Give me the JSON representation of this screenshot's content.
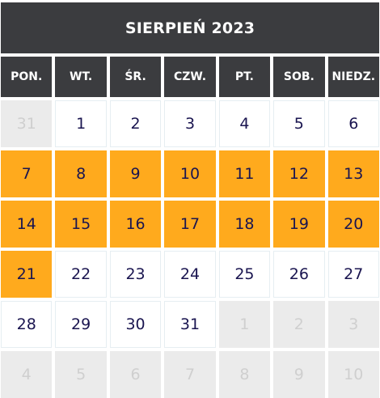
{
  "calendar": {
    "title": "SIERPIEŃ 2023",
    "weekdays": [
      "PON.",
      "WT.",
      "ŚR.",
      "CZW.",
      "PT.",
      "SOB.",
      "NIEDZ."
    ],
    "colors": {
      "header_bg": "#3b3c3f",
      "selected_bg": "#ffaa1d",
      "day_text": "#1a1550",
      "other_month_bg": "#ebebeb",
      "other_month_text": "#cfcfcf"
    },
    "days": [
      {
        "label": "31",
        "state": "other"
      },
      {
        "label": "1",
        "state": "current"
      },
      {
        "label": "2",
        "state": "current"
      },
      {
        "label": "3",
        "state": "current"
      },
      {
        "label": "4",
        "state": "current"
      },
      {
        "label": "5",
        "state": "current"
      },
      {
        "label": "6",
        "state": "current"
      },
      {
        "label": "7",
        "state": "selected"
      },
      {
        "label": "8",
        "state": "selected"
      },
      {
        "label": "9",
        "state": "selected"
      },
      {
        "label": "10",
        "state": "selected"
      },
      {
        "label": "11",
        "state": "selected"
      },
      {
        "label": "12",
        "state": "selected"
      },
      {
        "label": "13",
        "state": "selected"
      },
      {
        "label": "14",
        "state": "selected"
      },
      {
        "label": "15",
        "state": "selected"
      },
      {
        "label": "16",
        "state": "selected"
      },
      {
        "label": "17",
        "state": "selected"
      },
      {
        "label": "18",
        "state": "selected"
      },
      {
        "label": "19",
        "state": "selected"
      },
      {
        "label": "20",
        "state": "selected"
      },
      {
        "label": "21",
        "state": "selected"
      },
      {
        "label": "22",
        "state": "current"
      },
      {
        "label": "23",
        "state": "current"
      },
      {
        "label": "24",
        "state": "current"
      },
      {
        "label": "25",
        "state": "current"
      },
      {
        "label": "26",
        "state": "current"
      },
      {
        "label": "27",
        "state": "current"
      },
      {
        "label": "28",
        "state": "current"
      },
      {
        "label": "29",
        "state": "current"
      },
      {
        "label": "30",
        "state": "current"
      },
      {
        "label": "31",
        "state": "current"
      },
      {
        "label": "1",
        "state": "other"
      },
      {
        "label": "2",
        "state": "other"
      },
      {
        "label": "3",
        "state": "other"
      },
      {
        "label": "4",
        "state": "other"
      },
      {
        "label": "5",
        "state": "other"
      },
      {
        "label": "6",
        "state": "other"
      },
      {
        "label": "7",
        "state": "other"
      },
      {
        "label": "8",
        "state": "other"
      },
      {
        "label": "9",
        "state": "other"
      },
      {
        "label": "10",
        "state": "other"
      }
    ]
  }
}
